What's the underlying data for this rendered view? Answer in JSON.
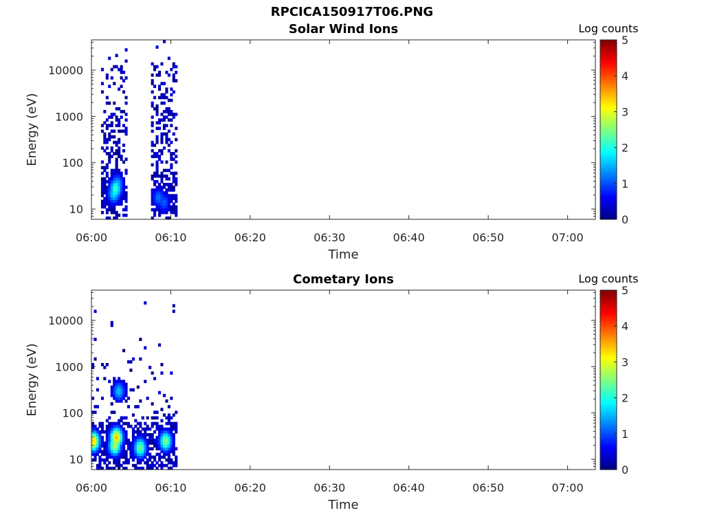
{
  "figure": {
    "title": "RPCICA150917T06.PNG"
  },
  "chart_data": [
    {
      "type": "heatmap",
      "title": "Solar Wind Ions",
      "xlabel": "Time",
      "ylabel": "Energy (eV)",
      "x_ticks": [
        "06:00",
        "06:10",
        "06:20",
        "06:30",
        "06:40",
        "06:50",
        "07:00"
      ],
      "xlim_minutes": [
        0,
        63.5
      ],
      "y_scale": "log",
      "ylim": [
        6,
        45000
      ],
      "y_ticks": [
        "10",
        "100",
        "1000",
        "10000"
      ],
      "y_tick_values": [
        10,
        100,
        1000,
        10000
      ],
      "colorbar": {
        "label": "Log counts",
        "ticks": [
          "0",
          "1",
          "2",
          "3",
          "4",
          "5"
        ],
        "range": [
          0,
          5
        ],
        "colormap": "jet"
      },
      "data_extent_minutes": [
        [
          1.2,
          4.3
        ],
        [
          7.5,
          10.8
        ]
      ],
      "hotspots": [
        {
          "t_min": 2.9,
          "energy_eV": 28,
          "log_counts": 2.2
        },
        {
          "t_min": 2.7,
          "energy_eV": 22,
          "log_counts": 1.8
        },
        {
          "t_min": 3.1,
          "energy_eV": 35,
          "log_counts": 1.6
        },
        {
          "t_min": 8.3,
          "energy_eV": 18,
          "log_counts": 1.2
        },
        {
          "t_min": 9.0,
          "energy_eV": 14,
          "log_counts": 1.1
        }
      ],
      "grid": false
    },
    {
      "type": "heatmap",
      "title": "Cometary Ions",
      "xlabel": "Time",
      "ylabel": "Energy (eV)",
      "x_ticks": [
        "06:00",
        "06:10",
        "06:20",
        "06:30",
        "06:40",
        "06:50",
        "07:00"
      ],
      "xlim_minutes": [
        0,
        63.5
      ],
      "y_scale": "log",
      "ylim": [
        6,
        45000
      ],
      "y_ticks": [
        "10",
        "100",
        "1000",
        "10000"
      ],
      "y_tick_values": [
        10,
        100,
        1000,
        10000
      ],
      "colorbar": {
        "label": "Log counts",
        "ticks": [
          "0",
          "1",
          "2",
          "3",
          "4",
          "5"
        ],
        "range": [
          0,
          5
        ],
        "colormap": "jet"
      },
      "data_extent_minutes": [
        [
          0,
          10.8
        ]
      ],
      "hotspots": [
        {
          "t_min": 0.1,
          "energy_eV": 25,
          "log_counts": 3.4
        },
        {
          "t_min": 3.0,
          "energy_eV": 30,
          "log_counts": 3.5
        },
        {
          "t_min": 2.8,
          "energy_eV": 20,
          "log_counts": 2.8
        },
        {
          "t_min": 6.0,
          "energy_eV": 18,
          "log_counts": 2.5
        },
        {
          "t_min": 9.2,
          "energy_eV": 25,
          "log_counts": 2.6
        },
        {
          "t_min": 3.3,
          "energy_eV": 300,
          "log_counts": 1.6
        }
      ],
      "grid": false
    }
  ]
}
